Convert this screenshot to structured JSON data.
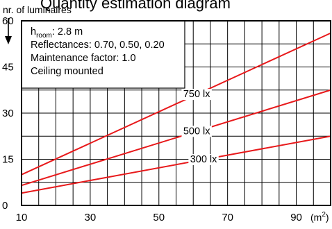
{
  "chart_data": {
    "type": "line",
    "title": "Quantity estimation diagram",
    "ylabel": "nr. of luminaires",
    "xlabel": "",
    "x_unit": "(m²)",
    "x_unit_base": "(m",
    "x_unit_sup": "2",
    "x_unit_close": ")",
    "xlim": [
      10,
      100
    ],
    "ylim": [
      0,
      60
    ],
    "x_ticks": [
      10,
      30,
      50,
      70,
      90
    ],
    "y_ticks": [
      0,
      15,
      30,
      45,
      60
    ],
    "x_ticks_text": [
      "10",
      "30",
      "50",
      "70",
      "90"
    ],
    "y_ticks_text": [
      "0",
      "15",
      "30",
      "45",
      "60"
    ],
    "grid": true,
    "annotations": {
      "h_room_label": "h",
      "h_room_sub": "room",
      "h_room_value": ": 2.8 m",
      "reflectances": "Reflectances: 0.70, 0.50, 0.20",
      "maintenance": "Maintenance factor: 1.0",
      "mounting": "Ceiling mounted"
    },
    "series": [
      {
        "name": "750 lx",
        "color": "#e8191b",
        "x": [
          10,
          100
        ],
        "y": [
          10,
          56
        ]
      },
      {
        "name": "500 lx",
        "color": "#e8191b",
        "x": [
          10,
          100
        ],
        "y": [
          6.5,
          37.5
        ]
      },
      {
        "name": "300 lx",
        "color": "#e8191b",
        "x": [
          10,
          100
        ],
        "y": [
          4,
          22.5
        ]
      }
    ],
    "series_label_x": [
      61,
      61,
      63
    ],
    "colors": {
      "line": "#e8191b",
      "grid": "#000000",
      "background": "#ffffff"
    }
  }
}
